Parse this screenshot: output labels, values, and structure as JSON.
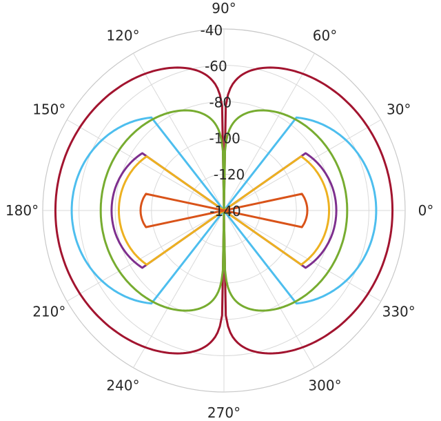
{
  "chart_data": {
    "type": "line",
    "projection": "polar",
    "title": "",
    "r_min": -140,
    "r_max": -40,
    "r_ticks": [
      -120,
      -100,
      -80,
      -60,
      -40
    ],
    "r_tick_labels": [
      "-120",
      "-100",
      "-80",
      "-60",
      "-40"
    ],
    "center_tick_label": "-140",
    "angle_ticks": [
      0,
      30,
      60,
      90,
      120,
      150,
      180,
      210,
      240,
      270,
      300,
      330
    ],
    "angle_tick_labels": [
      "0°",
      "30°",
      "60°",
      "90°",
      "120°",
      "150°",
      "180°",
      "210°",
      "240°",
      "270°",
      "300°",
      "330°"
    ],
    "grid": true,
    "legend": "none",
    "series": [
      {
        "color": "#a2142f",
        "shape": "smooth",
        "peak": -47,
        "half_width_deg": 90
      },
      {
        "color": "#4dbeee",
        "shape": "sector",
        "peak": -56,
        "edge_angle_deg": 52,
        "edge_value": -75
      },
      {
        "color": "#77ac30",
        "shape": "smooth",
        "peak": -72,
        "half_width_deg": 90
      },
      {
        "color": "#7e2f8e",
        "shape": "sector",
        "peak": -78,
        "edge_angle_deg": 35,
        "edge_value": -85
      },
      {
        "color": "#edb120",
        "shape": "sector",
        "peak": -82,
        "edge_angle_deg": 35,
        "edge_value": -88
      },
      {
        "color": "#d95319",
        "shape": "sector",
        "peak": -94,
        "edge_angle_deg": 12,
        "edge_value": -96
      }
    ]
  }
}
